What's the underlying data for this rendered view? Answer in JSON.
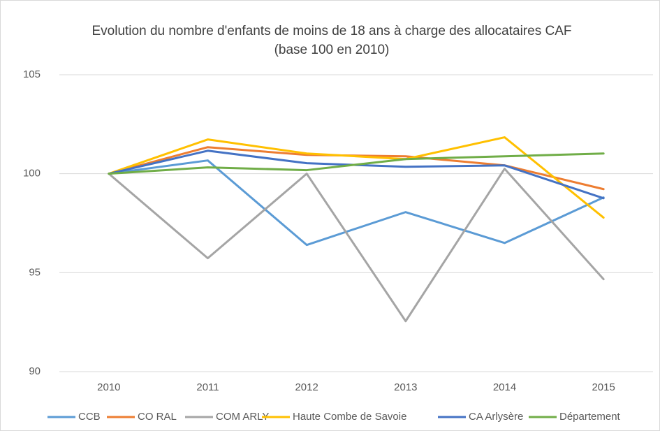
{
  "chart_data": {
    "type": "line",
    "title": "Evolution du nombre d'enfants de moins de 18 ans à charge des allocataires CAF",
    "subtitle": "(base 100 en 2010)",
    "categories": [
      "2010",
      "2011",
      "2012",
      "2013",
      "2014",
      "2015"
    ],
    "series": [
      {
        "name": "CCB",
        "color": "#5b9bd5",
        "values": [
          100,
          100.67,
          96.4,
          98.06,
          96.5,
          98.8
        ]
      },
      {
        "name": "CO RAL",
        "color": "#ed7d31",
        "values": [
          100,
          101.34,
          100.95,
          100.88,
          100.42,
          99.22
        ]
      },
      {
        "name": "COM ARLY",
        "color": "#a5a5a5",
        "values": [
          100,
          95.73,
          100,
          92.55,
          100.25,
          94.67
        ]
      },
      {
        "name": "Haute Combe de Savoie",
        "color": "#ffc000",
        "values": [
          100,
          101.73,
          101.02,
          100.74,
          101.84,
          97.78
        ]
      },
      {
        "name": "CA Arlysère",
        "color": "#4472c4",
        "values": [
          100,
          101.16,
          100.53,
          100.35,
          100.42,
          98.76
        ]
      },
      {
        "name": "Département",
        "color": "#70ad47",
        "values": [
          100,
          100.32,
          100.18,
          100.74,
          100.88,
          101.02
        ]
      }
    ],
    "ylim": [
      90,
      105
    ],
    "yticks": [
      90,
      95,
      100,
      105
    ],
    "grid": true,
    "legend": "bottom"
  }
}
